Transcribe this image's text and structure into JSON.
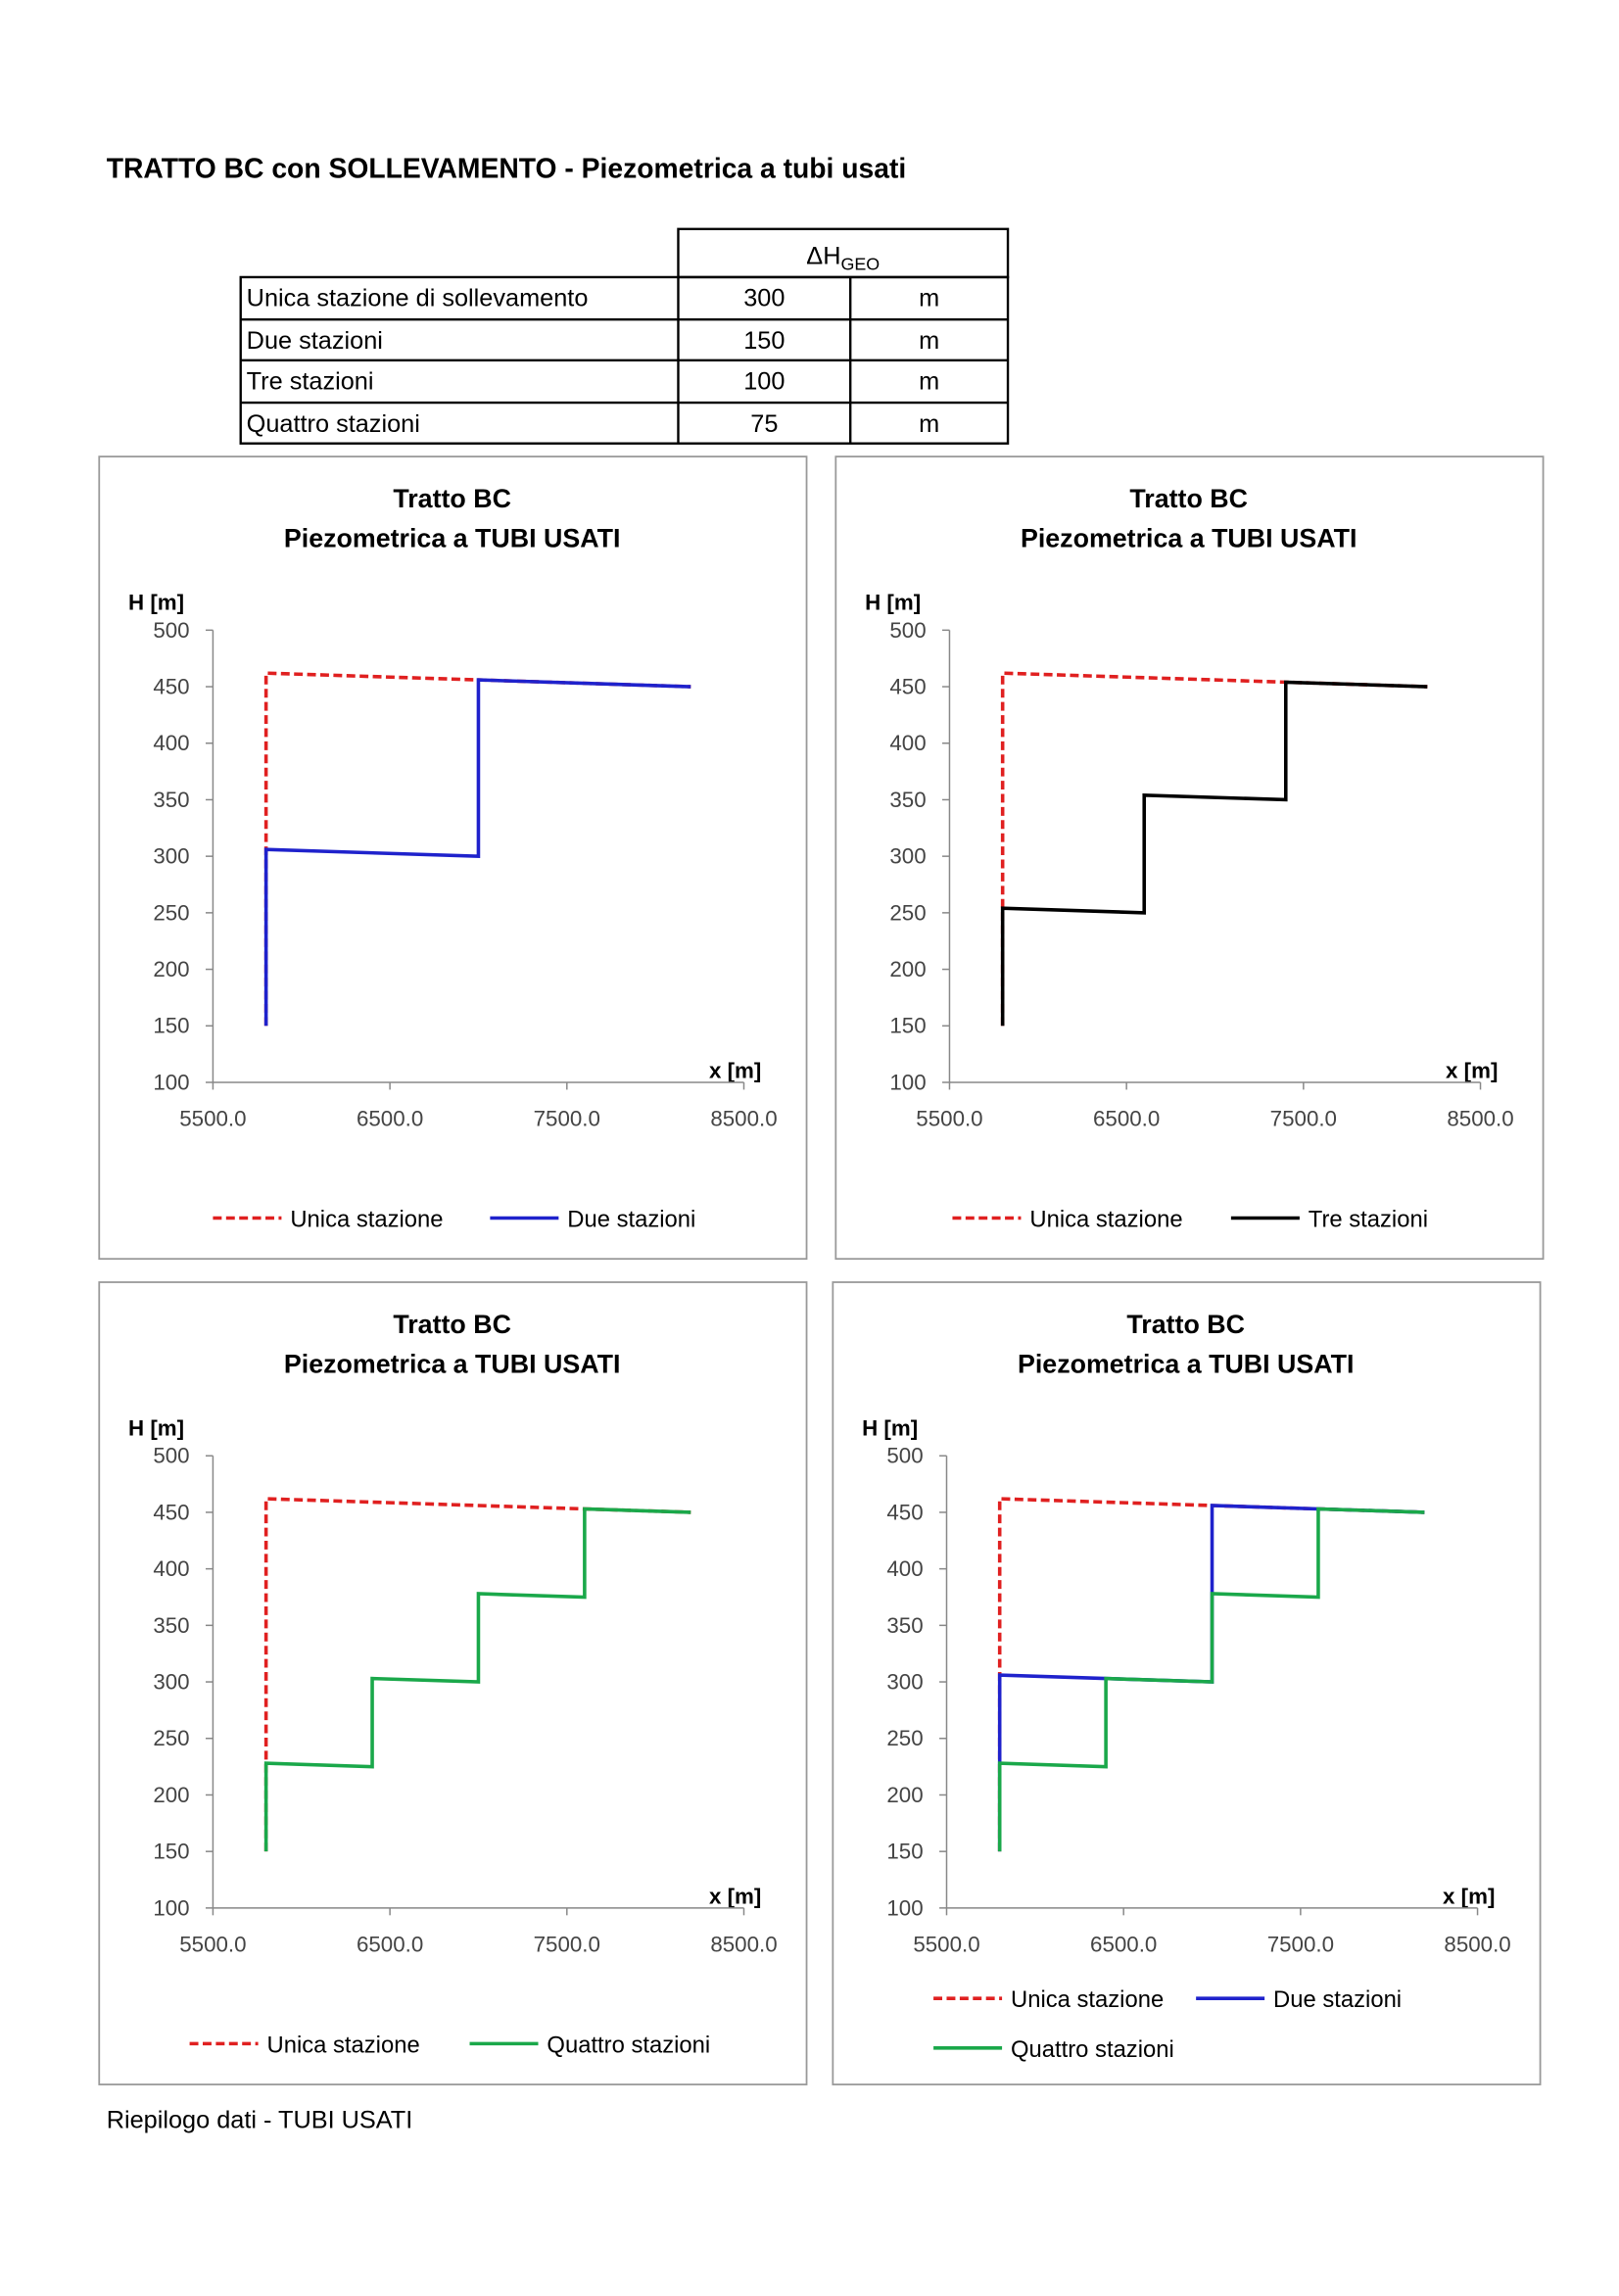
{
  "header": {
    "title": "TRATTO BC  con SOLLEVAMENTO - Piezometrica a tubi usati"
  },
  "table": {
    "header": {
      "symbol": "ΔH",
      "subscript": "GEO"
    },
    "rows": [
      [
        "Unica stazione di sollevamento",
        300,
        "m"
      ],
      [
        "Due stazioni",
        150,
        "m"
      ],
      [
        "Tre stazioni",
        100,
        "m"
      ],
      [
        "Quattro stazioni",
        75,
        "m"
      ]
    ]
  },
  "chart_data": [
    {
      "type": "line",
      "title": "Tratto BC",
      "subtitle": "Piezometrica a TUBI USATI",
      "ylabel": "H [m]",
      "xlabel": "x [m]",
      "xlim": [
        5500,
        8500
      ],
      "xticks": [
        {
          "value": 5500,
          "label": "5500.0"
        },
        {
          "value": 6500,
          "label": "6500.0"
        },
        {
          "value": 7500,
          "label": "7500.0"
        },
        {
          "value": 8500,
          "label": "8500.0"
        }
      ],
      "ylim": [
        100,
        500
      ],
      "yticks": [
        100,
        150,
        200,
        250,
        300,
        350,
        400,
        450,
        500
      ],
      "series": [
        {
          "name": "Unica stazione",
          "color": "#e02020",
          "dashed": true,
          "x": [
            5800,
            5800,
            8200
          ],
          "values": [
            150,
            462,
            450
          ]
        },
        {
          "name": "Due stazioni",
          "color": "#1f22cc",
          "dashed": false,
          "x": [
            5800,
            5800,
            7000,
            7000,
            8200
          ],
          "values": [
            150,
            306,
            300,
            456,
            450
          ]
        }
      ]
    },
    {
      "type": "line",
      "title": "Tratto BC",
      "subtitle": "Piezometrica a TUBI USATI",
      "ylabel": "H [m]",
      "xlabel": "x [m]",
      "xlim": [
        5500,
        8500
      ],
      "xticks": [
        {
          "value": 5500,
          "label": "5500.0"
        },
        {
          "value": 6500,
          "label": "6500.0"
        },
        {
          "value": 7500,
          "label": "7500.0"
        },
        {
          "value": 8500,
          "label": "8500.0"
        }
      ],
      "ylim": [
        100,
        500
      ],
      "yticks": [
        100,
        150,
        200,
        250,
        300,
        350,
        400,
        450,
        500
      ],
      "series": [
        {
          "name": "Unica stazione",
          "color": "#e02020",
          "dashed": true,
          "x": [
            5800,
            5800,
            8200
          ],
          "values": [
            150,
            462,
            450
          ]
        },
        {
          "name": "Tre stazioni",
          "color": "#000000",
          "dashed": false,
          "x": [
            5800,
            5800,
            6600,
            6600,
            7400,
            7400,
            8200
          ],
          "values": [
            150,
            254,
            250,
            354,
            350,
            454,
            450
          ]
        }
      ]
    },
    {
      "type": "line",
      "title": "Tratto BC",
      "subtitle": "Piezometrica a TUBI USATI",
      "ylabel": "H [m]",
      "xlabel": "x [m]",
      "xlim": [
        5500,
        8500
      ],
      "xticks": [
        {
          "value": 5500,
          "label": "5500.0"
        },
        {
          "value": 6500,
          "label": "6500.0"
        },
        {
          "value": 7500,
          "label": "7500.0"
        },
        {
          "value": 8500,
          "label": "8500.0"
        }
      ],
      "ylim": [
        100,
        500
      ],
      "yticks": [
        100,
        150,
        200,
        250,
        300,
        350,
        400,
        450,
        500
      ],
      "series": [
        {
          "name": "Unica stazione",
          "color": "#e02020",
          "dashed": true,
          "x": [
            5800,
            5800,
            8200
          ],
          "values": [
            150,
            462,
            450
          ]
        },
        {
          "name": "Quattro stazioni",
          "color": "#1aa84a",
          "dashed": false,
          "x": [
            5800,
            5800,
            6400,
            6400,
            7000,
            7000,
            7600,
            7600,
            8200
          ],
          "values": [
            150,
            228,
            225,
            303,
            300,
            378,
            375,
            453,
            450
          ]
        }
      ]
    },
    {
      "type": "line",
      "title": "Tratto BC",
      "subtitle": "Piezometrica a TUBI USATI",
      "ylabel": "H [m]",
      "xlabel": "x [m]",
      "xlim": [
        5500,
        8500
      ],
      "xticks": [
        {
          "value": 5500,
          "label": "5500.0"
        },
        {
          "value": 6500,
          "label": "6500.0"
        },
        {
          "value": 7500,
          "label": "7500.0"
        },
        {
          "value": 8500,
          "label": "8500.0"
        }
      ],
      "ylim": [
        100,
        500
      ],
      "yticks": [
        100,
        150,
        200,
        250,
        300,
        350,
        400,
        450,
        500
      ],
      "series": [
        {
          "name": "Unica stazione",
          "color": "#e02020",
          "dashed": true,
          "x": [
            5800,
            5800,
            8200
          ],
          "values": [
            150,
            462,
            450
          ]
        },
        {
          "name": "Due stazioni",
          "color": "#1f22cc",
          "dashed": false,
          "x": [
            5800,
            5800,
            7000,
            7000,
            8200
          ],
          "values": [
            150,
            306,
            300,
            456,
            450
          ]
        },
        {
          "name": "Quattro stazioni",
          "color": "#1aa84a",
          "dashed": false,
          "x": [
            5800,
            5800,
            6400,
            6400,
            7000,
            7000,
            7600,
            7600,
            8200
          ],
          "values": [
            150,
            228,
            225,
            303,
            300,
            378,
            375,
            453,
            450
          ]
        }
      ]
    }
  ],
  "footer": "Riepilogo dati - TUBI USATI"
}
